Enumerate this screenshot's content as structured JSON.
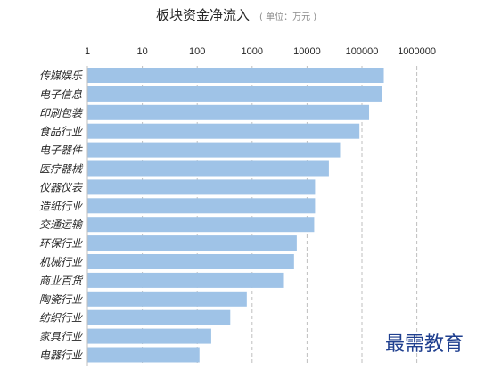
{
  "chart_data": {
    "type": "bar",
    "orientation": "horizontal",
    "title": "板块资金净流入",
    "subtitle": "( 单位：万元 )",
    "x_scale": "log",
    "xlim": [
      1,
      1000000
    ],
    "grid": "vertical-dashed",
    "ticks": [
      {
        "value": 1,
        "label": "1"
      },
      {
        "value": 10,
        "label": "10"
      },
      {
        "value": 100,
        "label": "100"
      },
      {
        "value": 1000,
        "label": "1000"
      },
      {
        "value": 10000,
        "label": "10000"
      },
      {
        "value": 100000,
        "label": "100000"
      },
      {
        "value": 1000000,
        "label": "1000000"
      }
    ],
    "categories": [
      "传媒娱乐",
      "电子信息",
      "印刷包装",
      "食品行业",
      "电子器件",
      "医疗器械",
      "仪器仪表",
      "造纸行业",
      "交通运输",
      "环保行业",
      "机械行业",
      "商业百货",
      "陶瓷行业",
      "纺织行业",
      "家具行业",
      "电器行业"
    ],
    "values": [
      250000,
      230000,
      135000,
      90000,
      40000,
      25000,
      14000,
      14000,
      13500,
      6500,
      5800,
      3800,
      800,
      400,
      180,
      110
    ],
    "bar_color": "#9fc3e7"
  },
  "watermark": "最需教育"
}
